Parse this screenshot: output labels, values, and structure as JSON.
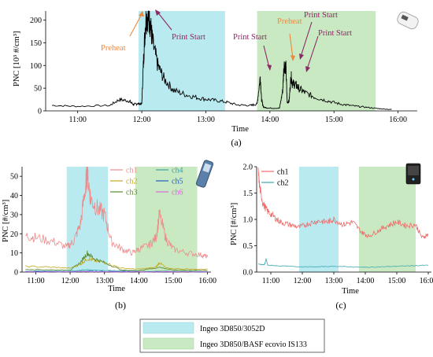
{
  "colors": {
    "blue_band": "#b8eaf0",
    "green_band": "#c8e9c2",
    "preheat": "#f0883a",
    "print_start": "#8b2a66",
    "trace_a": "#000000",
    "ch1": "#f08a8a",
    "ch2": "#c8a820",
    "ch3": "#5a8a30",
    "ch4": "#3fa0a8",
    "ch5": "#2060c0",
    "ch6": "#d86ad8",
    "c_ch1": "#f06a6a",
    "c_ch2": "#3fa8b0"
  },
  "icons": [
    "handheld-counter-icon",
    "particle-counter-icon",
    "tablet-monitor-icon"
  ],
  "chart_data": [
    {
      "type": "line",
      "caption": "(a)",
      "ylabel": "PNC [10³ #/cm³]",
      "xlabel": "Time",
      "x_ticks": [
        "11:00",
        "12:00",
        "13:00",
        "14:00",
        "15:00",
        "16:00"
      ],
      "y_ticks": [
        "0",
        "50",
        "100",
        "150",
        "200"
      ],
      "ylim": [
        0,
        220
      ],
      "xlim_hours": [
        10.5,
        16.3
      ],
      "bands": [
        {
          "from": 11.95,
          "to": 13.3,
          "color": "blue_band"
        },
        {
          "from": 13.8,
          "to": 15.65,
          "color": "green_band"
        }
      ],
      "series": [
        {
          "x": [
            10.6,
            11.0,
            11.5,
            11.65,
            11.8,
            11.87,
            11.93,
            12.0,
            12.03,
            12.06,
            12.1,
            12.13,
            12.17,
            12.25,
            12.35,
            12.5,
            12.7,
            12.9,
            13.1,
            13.3,
            13.5,
            13.7,
            13.8,
            13.85,
            13.87,
            13.9,
            14.0,
            14.15,
            14.2,
            14.22,
            14.25,
            14.27,
            14.3,
            14.33,
            14.35,
            14.4,
            14.45,
            14.55,
            14.7,
            14.9,
            15.1,
            15.3,
            15.5,
            15.7,
            15.9
          ],
          "y": [
            12,
            10,
            12,
            25,
            22,
            14,
            16,
            15,
            120,
            200,
            212,
            195,
            150,
            100,
            70,
            45,
            35,
            28,
            24,
            20,
            13,
            12,
            15,
            75,
            25,
            8,
            6,
            6,
            45,
            102,
            95,
            18,
            22,
            78,
            60,
            58,
            50,
            40,
            30,
            22,
            15,
            11,
            8,
            5,
            3
          ]
        }
      ],
      "annotations": [
        {
          "text": "Preheat",
          "color": "preheat"
        },
        {
          "text": "Print Start",
          "color": "print_start"
        },
        {
          "text": "Print Start",
          "color": "print_start"
        },
        {
          "text": "Preheat",
          "color": "preheat"
        },
        {
          "text": "Print Start",
          "color": "print_start"
        },
        {
          "text": "Print Start",
          "color": "print_start"
        }
      ]
    },
    {
      "type": "line",
      "caption": "(b)",
      "ylabel": "PNC [#/cm³]",
      "xlabel": "Time",
      "x_ticks": [
        "11:00",
        "12:00",
        "13:00",
        "14:00",
        "15:00",
        "16:00"
      ],
      "y_ticks": [
        "0",
        "10",
        "20",
        "30",
        "40",
        "50"
      ],
      "ylim": [
        0,
        55
      ],
      "xlim_hours": [
        10.6,
        16.1
      ],
      "bands": [
        {
          "from": 11.9,
          "to": 13.1,
          "color": "blue_band"
        },
        {
          "from": 13.9,
          "to": 15.7,
          "color": "green_band"
        }
      ],
      "legend": [
        "ch1",
        "ch2",
        "ch3",
        "ch4",
        "ch5",
        "ch6"
      ],
      "series": [
        {
          "name": "ch1",
          "x": [
            10.7,
            11.0,
            11.5,
            11.9,
            12.1,
            12.3,
            12.45,
            12.5,
            12.6,
            12.8,
            13.0,
            13.2,
            13.5,
            13.8,
            14.0,
            14.3,
            14.5,
            14.6,
            14.8,
            15.0,
            15.4,
            15.8,
            16.0
          ],
          "y": [
            19,
            18,
            16,
            13,
            16,
            25,
            45,
            52,
            38,
            33,
            30,
            16,
            12,
            10,
            12,
            14,
            18,
            30,
            17,
            12,
            10,
            9,
            8
          ]
        },
        {
          "name": "ch2",
          "x": [
            10.7,
            11.5,
            12.0,
            12.3,
            12.5,
            12.7,
            13.0,
            13.5,
            14.0,
            14.5,
            14.6,
            14.8,
            15.5,
            16.0
          ],
          "y": [
            3,
            2.5,
            2,
            4,
            7,
            6,
            5,
            2,
            1.5,
            2.5,
            5,
            2,
            1.5,
            1.5
          ]
        },
        {
          "name": "ch3",
          "x": [
            10.7,
            11.5,
            12.0,
            12.3,
            12.5,
            12.7,
            13.0,
            13.5,
            14.0,
            14.6,
            15.0,
            16.0
          ],
          "y": [
            1.5,
            1.2,
            1,
            5,
            10,
            7,
            5,
            1,
            0.8,
            2.5,
            1,
            0.8
          ]
        },
        {
          "name": "ch4",
          "x": [
            10.7,
            12.0,
            12.5,
            13.0,
            14.0,
            15.0,
            16.0
          ],
          "y": [
            0.6,
            0.5,
            1.2,
            0.8,
            0.4,
            0.4,
            0.3
          ]
        },
        {
          "name": "ch5",
          "x": [
            10.7,
            12.0,
            12.5,
            13.0,
            14.0,
            15.0,
            16.0
          ],
          "y": [
            0.3,
            0.2,
            0.5,
            0.3,
            0.2,
            0.2,
            0.1
          ]
        },
        {
          "name": "ch6",
          "x": [
            10.7,
            12.0,
            12.5,
            13.0,
            14.0,
            15.0,
            16.0
          ],
          "y": [
            0.1,
            0.1,
            0.2,
            0.1,
            0.1,
            0.1,
            0.05
          ]
        }
      ]
    },
    {
      "type": "line",
      "caption": "(c)",
      "ylabel": "PNC [#/cm³]",
      "xlabel": "Time",
      "x_ticks": [
        "11:00",
        "12:00",
        "13:00",
        "14:00",
        "15:00",
        "16:00"
      ],
      "y_ticks": [
        "0.0",
        "0.5",
        "1.0",
        "1.5",
        "2.0"
      ],
      "ylim": [
        0,
        2.0
      ],
      "xlim_hours": [
        10.55,
        16.1
      ],
      "bands": [
        {
          "from": 11.9,
          "to": 13.15,
          "color": "blue_band"
        },
        {
          "from": 13.8,
          "to": 15.6,
          "color": "green_band"
        }
      ],
      "legend": [
        "ch1",
        "ch2"
      ],
      "series": [
        {
          "name": "ch1",
          "x": [
            10.6,
            10.65,
            10.75,
            10.9,
            11.1,
            11.3,
            11.6,
            11.9,
            12.2,
            12.5,
            12.8,
            13.0,
            13.3,
            13.6,
            13.9,
            14.1,
            14.4,
            14.7,
            15.0,
            15.3,
            15.6,
            15.8,
            16.0
          ],
          "y": [
            1.9,
            1.6,
            1.3,
            1.15,
            1.05,
            0.95,
            0.9,
            0.85,
            0.92,
            0.97,
            0.95,
            1.0,
            0.9,
            0.95,
            0.75,
            0.68,
            0.78,
            0.88,
            0.95,
            0.88,
            0.9,
            0.65,
            0.72
          ]
        },
        {
          "name": "ch2",
          "x": [
            10.6,
            10.8,
            10.85,
            10.9,
            11.2,
            11.6,
            12.0,
            12.5,
            13.0,
            13.5,
            14.0,
            14.5,
            15.0,
            15.5,
            16.0
          ],
          "y": [
            0.15,
            0.14,
            0.25,
            0.13,
            0.12,
            0.11,
            0.1,
            0.1,
            0.11,
            0.1,
            0.09,
            0.1,
            0.11,
            0.12,
            0.13
          ]
        }
      ]
    }
  ],
  "legend_bottom": [
    {
      "label": "Ingeo 3D850/3052D",
      "color": "blue_band"
    },
    {
      "label": "Ingeo 3D850/BASF ecovio IS133",
      "color": "green_band"
    }
  ]
}
